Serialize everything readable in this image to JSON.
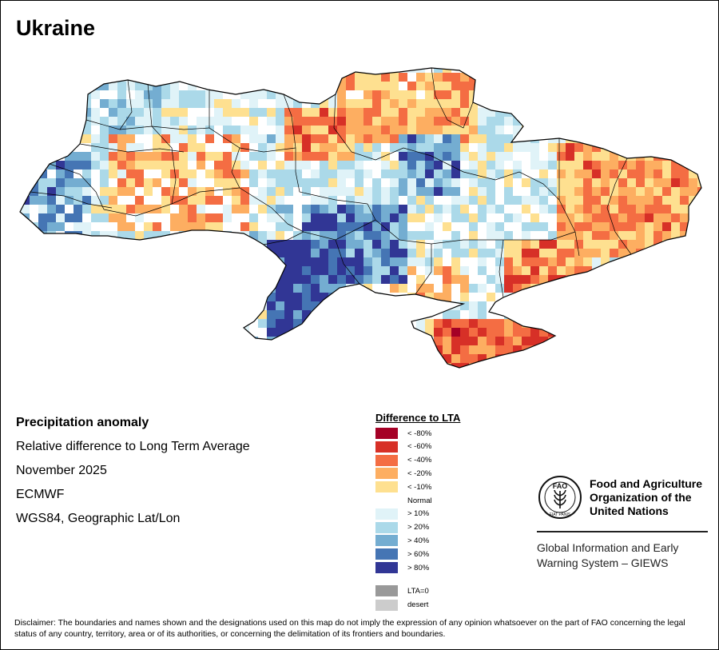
{
  "title": "Ukraine",
  "info": {
    "heading": "Precipitation anomaly",
    "subtitle": "Relative difference to Long Term Average",
    "period": "November 2025",
    "source": "ECMWF",
    "projection": "WGS84, Geographic Lat/Lon"
  },
  "legend": {
    "title": "Difference to LTA",
    "items": [
      {
        "label": "< -80%",
        "color": "#a50026"
      },
      {
        "label": "< -60%",
        "color": "#d73027"
      },
      {
        "label": "< -40%",
        "color": "#f46d43"
      },
      {
        "label": "< -20%",
        "color": "#fdae61"
      },
      {
        "label": "< -10%",
        "color": "#fee090"
      },
      {
        "label": "Normal",
        "color": "#ffffff"
      },
      {
        "label": "> 10%",
        "color": "#e0f3f8"
      },
      {
        "label": "> 20%",
        "color": "#abd9e9"
      },
      {
        "label": "> 40%",
        "color": "#74add1"
      },
      {
        "label": "> 60%",
        "color": "#4575b4"
      },
      {
        "label": "> 80%",
        "color": "#313695"
      }
    ],
    "extra": [
      {
        "label": "LTA=0",
        "color": "#999999"
      },
      {
        "label": "desert",
        "color": "#cccccc"
      }
    ]
  },
  "org": {
    "name_line1": "Food and Agriculture",
    "name_line2": "Organization of the",
    "name_line3": "United Nations",
    "logo_text": "FAO",
    "logo_motto": "FIAT PANIS",
    "giews_line1": "Global Information and Early",
    "giews_line2": "Warning System – GIEWS"
  },
  "disclaimer": "Disclaimer: The boundaries and names shown and the designations used on this map do not imply the expression of any opinion whatsoever on the part of FAO concerning the legal status of any country, territory, area or of its authorities, or concerning the delimitation of its frontiers and boundaries."
}
